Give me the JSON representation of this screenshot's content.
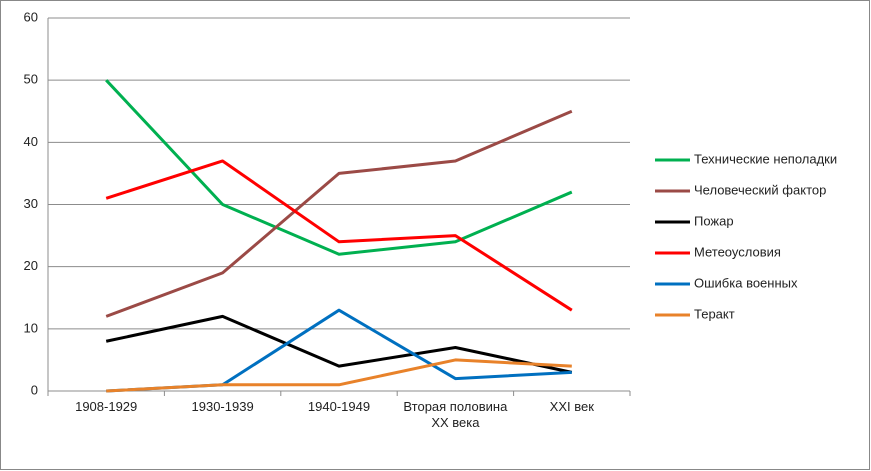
{
  "chart_data": {
    "type": "line",
    "categories": [
      "1908-1929",
      "1930-1939",
      "1940-1949",
      "Вторая половина XX века",
      "XXI век"
    ],
    "series": [
      {
        "name": "Технические неполадки",
        "color": "#00b050",
        "values": [
          50,
          30,
          22,
          24,
          32
        ]
      },
      {
        "name": "Человеческий фактор",
        "color": "#9b4a46",
        "values": [
          12,
          19,
          35,
          37,
          45
        ]
      },
      {
        "name": "Пожар",
        "color": "#000000",
        "values": [
          8,
          12,
          4,
          7,
          3
        ]
      },
      {
        "name": "Метеоусловия",
        "color": "#ff0000",
        "values": [
          31,
          37,
          24,
          25,
          13
        ]
      },
      {
        "name": "Ошибка военных",
        "color": "#0070c0",
        "values": [
          0,
          1,
          13,
          2,
          3
        ]
      },
      {
        "name": "Теракт",
        "color": "#e8822a",
        "values": [
          0,
          1,
          1,
          5,
          4
        ]
      }
    ],
    "ylim": [
      0,
      60
    ],
    "yticks": [
      0,
      10,
      20,
      30,
      40,
      50,
      60
    ],
    "grid": true,
    "legend": "right"
  }
}
